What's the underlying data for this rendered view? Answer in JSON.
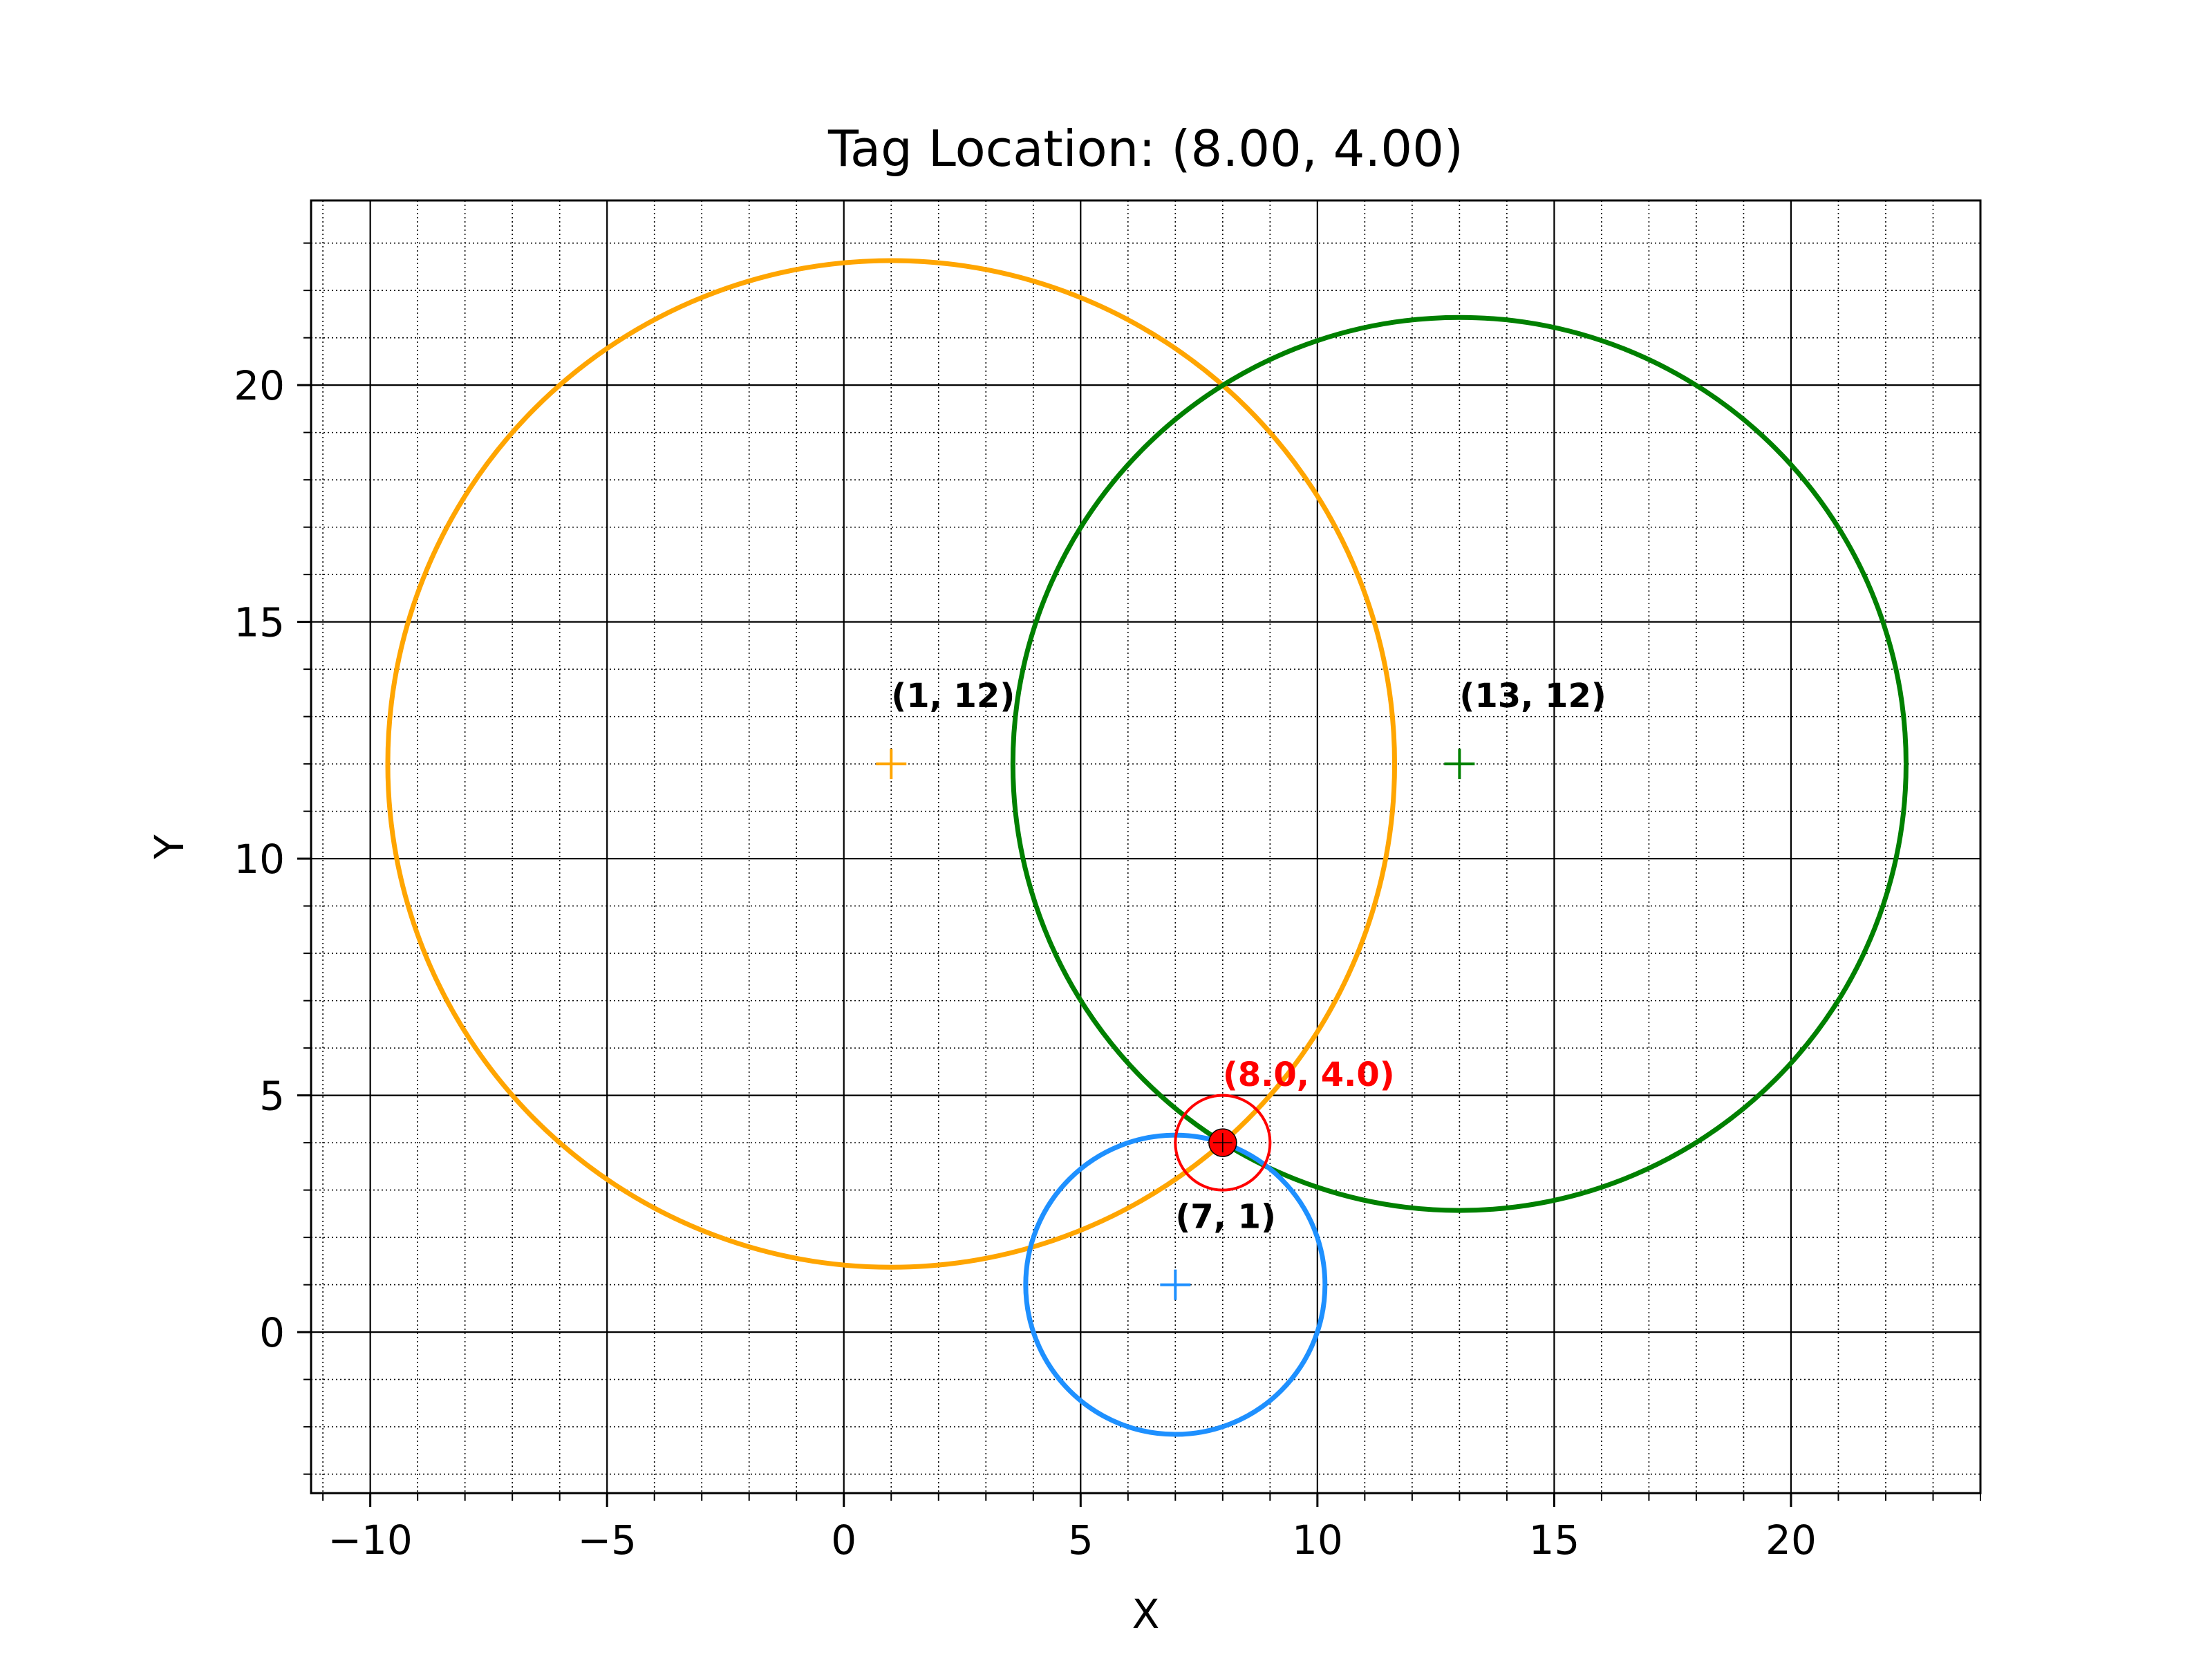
{
  "chart_data": {
    "type": "scatter",
    "title": "Tag Location: (8.00, 4.00)",
    "xlabel": "X",
    "ylabel": "Y",
    "xlim": [
      -11.25,
      24.0
    ],
    "ylim": [
      -3.4,
      23.9
    ],
    "x_ticks": [
      -10,
      -5,
      0,
      5,
      10,
      15,
      20
    ],
    "y_ticks": [
      0,
      5,
      10,
      15,
      20
    ],
    "x_tick_labels": [
      "−10",
      "−5",
      "0",
      "5",
      "10",
      "15",
      "20"
    ],
    "y_tick_labels": [
      "0",
      "5",
      "10",
      "15",
      "20"
    ],
    "grid_major": true,
    "grid_minor": true,
    "minor_step": 1,
    "anchors": [
      {
        "x": 1,
        "y": 12,
        "radius": 10.63,
        "color": "#ffa500",
        "label": "(1, 12)"
      },
      {
        "x": 13,
        "y": 12,
        "radius": 9.43,
        "color": "#008000",
        "label": "(13, 12)"
      },
      {
        "x": 7,
        "y": 1,
        "radius": 3.16,
        "color": "#1e90ff",
        "label": "(7, 1)"
      }
    ],
    "tag": {
      "x": 8.0,
      "y": 4.0,
      "ring_radius": 1.0,
      "color": "#ff0000",
      "label": "(8.0, 4.0)"
    }
  }
}
